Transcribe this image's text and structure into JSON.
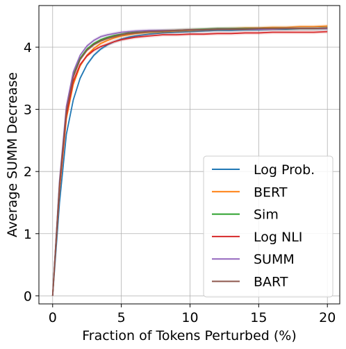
{
  "chart_data": {
    "type": "line",
    "xlabel": "Fraction of Tokens Perturbed (%)",
    "ylabel": "Average SUMM Decrease",
    "xlim": [
      -1,
      20.9
    ],
    "ylim": [
      -0.13,
      4.67
    ],
    "xticks": [
      0,
      5,
      10,
      15,
      20
    ],
    "yticks": [
      0,
      1,
      2,
      3,
      4
    ],
    "grid": true,
    "legend_position": "lower-right",
    "x": [
      0,
      0.5,
      1,
      1.5,
      2,
      2.5,
      3,
      3.5,
      4,
      4.5,
      5,
      5.5,
      6,
      7,
      8,
      9,
      10,
      11,
      12,
      13,
      14,
      15,
      16,
      17,
      18,
      19,
      20
    ],
    "series": [
      {
        "name": "Log Prob.",
        "color": "#1f77b4",
        "values": [
          0,
          1.5,
          2.6,
          3.15,
          3.5,
          3.72,
          3.87,
          3.97,
          4.04,
          4.09,
          4.13,
          4.16,
          4.18,
          4.21,
          4.23,
          4.24,
          4.25,
          4.26,
          4.27,
          4.27,
          4.28,
          4.28,
          4.29,
          4.29,
          4.3,
          4.3,
          4.3
        ]
      },
      {
        "name": "BERT",
        "color": "#ff7f0e",
        "values": [
          0,
          1.7,
          2.85,
          3.4,
          3.7,
          3.87,
          3.98,
          4.06,
          4.11,
          4.15,
          4.18,
          4.2,
          4.22,
          4.24,
          4.25,
          4.26,
          4.27,
          4.28,
          4.29,
          4.3,
          4.31,
          4.31,
          4.32,
          4.32,
          4.33,
          4.33,
          4.34
        ]
      },
      {
        "name": "Sim",
        "color": "#2ca02c",
        "values": [
          0,
          1.8,
          3.0,
          3.55,
          3.82,
          3.97,
          4.06,
          4.12,
          4.16,
          4.19,
          4.21,
          4.23,
          4.24,
          4.25,
          4.26,
          4.27,
          4.28,
          4.29,
          4.3,
          4.3,
          4.3,
          4.3,
          4.3,
          4.3,
          4.3,
          4.3,
          4.31
        ]
      },
      {
        "name": "Log NLI",
        "color": "#d62728",
        "values": [
          0,
          1.75,
          2.9,
          3.45,
          3.72,
          3.86,
          3.95,
          4.01,
          4.05,
          4.09,
          4.12,
          4.14,
          4.16,
          4.18,
          4.2,
          4.2,
          4.21,
          4.21,
          4.22,
          4.22,
          4.23,
          4.23,
          4.24,
          4.24,
          4.24,
          4.24,
          4.25
        ]
      },
      {
        "name": "SUMM",
        "color": "#9467bd",
        "values": [
          0,
          1.85,
          3.05,
          3.6,
          3.87,
          4.02,
          4.11,
          4.17,
          4.2,
          4.22,
          4.24,
          4.25,
          4.26,
          4.27,
          4.27,
          4.27,
          4.28,
          4.28,
          4.29,
          4.29,
          4.29,
          4.29,
          4.29,
          4.3,
          4.3,
          4.3,
          4.3
        ]
      },
      {
        "name": "BART",
        "color": "#8c564b",
        "values": [
          0,
          1.8,
          2.98,
          3.52,
          3.8,
          3.95,
          4.04,
          4.1,
          4.14,
          4.17,
          4.2,
          4.22,
          4.23,
          4.25,
          4.26,
          4.27,
          4.28,
          4.28,
          4.29,
          4.29,
          4.29,
          4.3,
          4.3,
          4.3,
          4.3,
          4.3,
          4.31
        ]
      }
    ]
  }
}
